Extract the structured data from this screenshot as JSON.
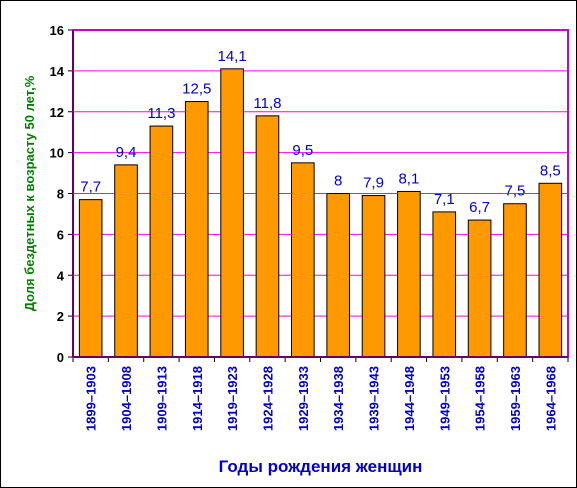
{
  "chart_data": {
    "type": "bar",
    "title": "",
    "xlabel": "Годы рождения женщин",
    "ylabel": "Доля бездетных к возрасту 50 лет,%",
    "ylim": [
      0,
      16
    ],
    "yticks": [
      0,
      2,
      4,
      6,
      8,
      10,
      12,
      14,
      16
    ],
    "grid": true,
    "legend": "none",
    "categories": [
      "1899–1903",
      "1904–1908",
      "1909–1913",
      "1914–1918",
      "1919–1923",
      "1924–1928",
      "1929–1933",
      "1934–1938",
      "1939–1943",
      "1944–1948",
      "1949–1953",
      "1954–1958",
      "1959–1963",
      "1964–1968"
    ],
    "values": [
      7.7,
      9.4,
      11.3,
      12.5,
      14.1,
      11.8,
      9.5,
      8,
      7.9,
      8.1,
      7.1,
      6.7,
      7.5,
      8.5
    ],
    "data_labels": [
      "7,7",
      "9,4",
      "11,3",
      "12,5",
      "14,1",
      "11,8",
      "9,5",
      "8",
      "7,9",
      "8,1",
      "7,1",
      "6,7",
      "7,5",
      "8,5"
    ],
    "colors": {
      "bar_fill": "#ff9900",
      "bar_stroke": "#000000",
      "gridline": "#ff00ff",
      "plot_border": "#cc00cc",
      "data_label": "#0000cc",
      "tick_label_x": "#0000cc",
      "ylabel": "#008000",
      "xlabel": "#0000cc"
    }
  }
}
